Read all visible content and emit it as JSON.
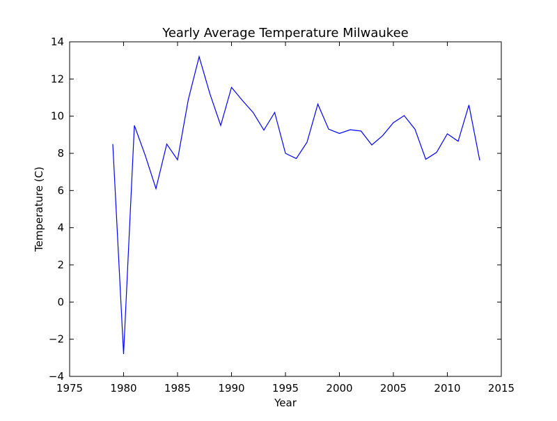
{
  "chart_data": {
    "type": "line",
    "title": "Yearly Average Temperature Milwaukee",
    "xlabel": "Year",
    "ylabel": "Temperature (C)",
    "xlim": [
      1975,
      2015
    ],
    "ylim": [
      -4,
      14
    ],
    "xticks": [
      1975,
      1980,
      1985,
      1990,
      1995,
      2000,
      2005,
      2010,
      2015
    ],
    "yticks": [
      -4,
      -2,
      0,
      2,
      4,
      6,
      8,
      10,
      12,
      14
    ],
    "xtick_labels": [
      "1975",
      "1980",
      "1985",
      "1990",
      "1995",
      "2000",
      "2005",
      "2010",
      "2015"
    ],
    "ytick_labels": [
      "−4",
      "−2",
      "0",
      "2",
      "4",
      "6",
      "8",
      "10",
      "12",
      "14"
    ],
    "grid": false,
    "line_color": "#0000ff",
    "series": [
      {
        "x": [
          1979,
          1980,
          1981,
          1982,
          1983,
          1984,
          1985,
          1986,
          1987,
          1988,
          1989,
          1990,
          1991,
          1992,
          1993,
          1994,
          1995,
          1996,
          1997,
          1998,
          1999,
          2000,
          2001,
          2002,
          2003,
          2004,
          2005,
          2006,
          2007,
          2008,
          2009,
          2010,
          2011,
          2012,
          2013
        ],
        "y": [
          8.5,
          -2.8,
          9.5,
          7.9,
          6.1,
          8.5,
          7.65,
          10.9,
          13.2,
          11.2,
          9.5,
          11.55,
          10.85,
          10.2,
          9.25,
          10.2,
          8.0,
          7.72,
          8.6,
          10.65,
          9.3,
          9.07,
          9.27,
          9.2,
          8.45,
          8.95,
          9.65,
          10.03,
          9.3,
          7.68,
          8.05,
          9.05,
          8.65,
          10.6,
          7.62
        ]
      }
    ]
  }
}
